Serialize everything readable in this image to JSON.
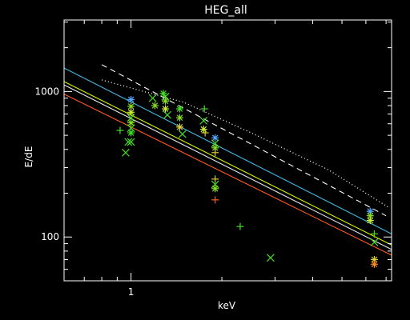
{
  "chart_data": {
    "type": "scatter",
    "title": "HEG_all",
    "xlabel": "keV",
    "ylabel": "E/dE",
    "xscale": "log",
    "yscale": "log",
    "xlim": [
      0.6,
      7.3
    ],
    "ylim": [
      50,
      3100
    ],
    "x_ticks": [
      {
        "value": 1,
        "label": "1"
      }
    ],
    "y_ticks": [
      {
        "value": 100,
        "label": "100"
      },
      {
        "value": 1000,
        "label": "1000"
      }
    ],
    "grid": false,
    "legend": "none",
    "lines": [
      {
        "style": "dashed",
        "color": "#ffffff",
        "points": [
          [
            0.8,
            1530
          ],
          [
            7.0,
            140
          ]
        ]
      },
      {
        "style": "dotted",
        "color": "#ffffff",
        "points": [
          [
            0.8,
            1200
          ],
          [
            1.5,
            840
          ],
          [
            2.5,
            520
          ],
          [
            4.5,
            290
          ],
          [
            7.2,
            158
          ]
        ]
      },
      {
        "style": "solid",
        "color": "#40b8e0",
        "points": [
          [
            0.6,
            1450
          ],
          [
            7.3,
            105
          ]
        ]
      },
      {
        "style": "solid",
        "color": "#d8f000",
        "points": [
          [
            0.6,
            1170
          ],
          [
            7.3,
            88
          ]
        ]
      },
      {
        "style": "solid",
        "color": "#e8e8e8",
        "points": [
          [
            0.6,
            1110
          ],
          [
            7.3,
            82
          ]
        ]
      },
      {
        "style": "solid",
        "color": "#ff5a20",
        "points": [
          [
            0.6,
            960
          ],
          [
            7.3,
            75
          ]
        ]
      }
    ],
    "points": [
      {
        "x": 0.92,
        "y": 540,
        "marker": "plus",
        "color": "#44dd22"
      },
      {
        "x": 0.96,
        "y": 380,
        "marker": "x",
        "color": "#44dd22"
      },
      {
        "x": 0.98,
        "y": 450,
        "marker": "x",
        "color": "#44dd22"
      },
      {
        "x": 1.0,
        "y": 880,
        "marker": "asterisk",
        "color": "#55a8ff"
      },
      {
        "x": 1.0,
        "y": 790,
        "marker": "asterisk",
        "color": "#88dd22"
      },
      {
        "x": 1.0,
        "y": 720,
        "marker": "asterisk",
        "color": "#ccee33"
      },
      {
        "x": 1.0,
        "y": 660,
        "marker": "x",
        "color": "#44dd22"
      },
      {
        "x": 1.0,
        "y": 610,
        "marker": "asterisk",
        "color": "#88dd22"
      },
      {
        "x": 1.0,
        "y": 560,
        "marker": "x",
        "color": "#44dd22"
      },
      {
        "x": 1.0,
        "y": 520,
        "marker": "asterisk",
        "color": "#44dd22"
      },
      {
        "x": 1.0,
        "y": 450,
        "marker": "x",
        "color": "#44dd22"
      },
      {
        "x": 1.18,
        "y": 900,
        "marker": "x",
        "color": "#44dd22"
      },
      {
        "x": 1.2,
        "y": 800,
        "marker": "asterisk",
        "color": "#88dd22"
      },
      {
        "x": 1.28,
        "y": 970,
        "marker": "asterisk",
        "color": "#44dd22"
      },
      {
        "x": 1.3,
        "y": 920,
        "marker": "x",
        "color": "#44dd22"
      },
      {
        "x": 1.3,
        "y": 860,
        "marker": "asterisk",
        "color": "#88dd22"
      },
      {
        "x": 1.3,
        "y": 760,
        "marker": "asterisk",
        "color": "#ccee33"
      },
      {
        "x": 1.32,
        "y": 690,
        "marker": "x",
        "color": "#44dd22"
      },
      {
        "x": 1.45,
        "y": 760,
        "marker": "asterisk",
        "color": "#44dd22"
      },
      {
        "x": 1.45,
        "y": 660,
        "marker": "asterisk",
        "color": "#88dd22"
      },
      {
        "x": 1.45,
        "y": 570,
        "marker": "asterisk",
        "color": "#ddcc33"
      },
      {
        "x": 1.48,
        "y": 510,
        "marker": "x",
        "color": "#44dd22"
      },
      {
        "x": 1.75,
        "y": 760,
        "marker": "plus",
        "color": "#44dd22"
      },
      {
        "x": 1.74,
        "y": 630,
        "marker": "x",
        "color": "#44dd22"
      },
      {
        "x": 1.74,
        "y": 550,
        "marker": "asterisk",
        "color": "#ccee33"
      },
      {
        "x": 1.76,
        "y": 520,
        "marker": "plus",
        "color": "#ddcc33"
      },
      {
        "x": 1.9,
        "y": 480,
        "marker": "asterisk",
        "color": "#55a8ff"
      },
      {
        "x": 1.9,
        "y": 440,
        "marker": "x",
        "color": "#44dd22"
      },
      {
        "x": 1.9,
        "y": 410,
        "marker": "asterisk",
        "color": "#88dd22"
      },
      {
        "x": 1.9,
        "y": 380,
        "marker": "plus",
        "color": "#ddcc33"
      },
      {
        "x": 1.9,
        "y": 250,
        "marker": "plus",
        "color": "#ddcc33"
      },
      {
        "x": 1.9,
        "y": 230,
        "marker": "x",
        "color": "#44dd22"
      },
      {
        "x": 1.9,
        "y": 215,
        "marker": "asterisk",
        "color": "#88dd22"
      },
      {
        "x": 1.9,
        "y": 180,
        "marker": "plus",
        "color": "#ff5a20"
      },
      {
        "x": 2.3,
        "y": 118,
        "marker": "plus",
        "color": "#44dd22"
      },
      {
        "x": 2.9,
        "y": 72,
        "marker": "x",
        "color": "#44dd22"
      },
      {
        "x": 6.2,
        "y": 150,
        "marker": "asterisk",
        "color": "#55a8ff"
      },
      {
        "x": 6.2,
        "y": 140,
        "marker": "asterisk",
        "color": "#88dd22"
      },
      {
        "x": 6.2,
        "y": 130,
        "marker": "asterisk",
        "color": "#ccee33"
      },
      {
        "x": 6.4,
        "y": 105,
        "marker": "plus",
        "color": "#44dd22"
      },
      {
        "x": 6.4,
        "y": 92,
        "marker": "x",
        "color": "#44dd22"
      },
      {
        "x": 6.4,
        "y": 70,
        "marker": "asterisk",
        "color": "#ddcc33"
      },
      {
        "x": 6.4,
        "y": 65,
        "marker": "asterisk",
        "color": "#ff8c20"
      }
    ]
  }
}
